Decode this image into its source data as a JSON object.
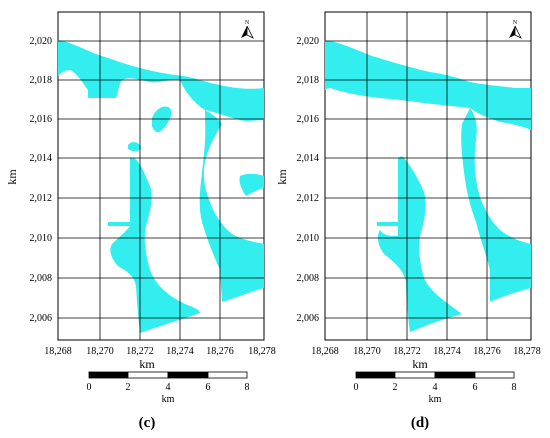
{
  "panels": [
    {
      "id": "c",
      "label": "(c)",
      "x_ticks": [
        "18,268",
        "18,270",
        "18,272",
        "18,274",
        "18,276",
        "18,278"
      ],
      "y_ticks": [
        "2,020",
        "2,018",
        "2,016",
        "2,014",
        "2,012",
        "2,010",
        "2,008",
        "2,006"
      ],
      "x_axis_label": "km",
      "y_axis_label": "km",
      "north_label": "N",
      "scale_ticks": [
        "0",
        "2",
        "4",
        "6",
        "8"
      ],
      "scale_unit": "km"
    },
    {
      "id": "d",
      "label": "(d)",
      "x_ticks": [
        "18,268",
        "18,270",
        "18,272",
        "18,274",
        "18,276",
        "18,278"
      ],
      "y_ticks": [
        "2,020",
        "2,018",
        "2,016",
        "2,014",
        "2,012",
        "2,010",
        "2,008",
        "2,006"
      ],
      "x_axis_label": "km",
      "y_axis_label": "km",
      "north_label": "N",
      "scale_ticks": [
        "0",
        "2",
        "4",
        "6",
        "8"
      ],
      "scale_unit": "km"
    }
  ],
  "colors": {
    "water_fill": "#33eeee",
    "grid": "#000000",
    "background": "#ffffff"
  }
}
